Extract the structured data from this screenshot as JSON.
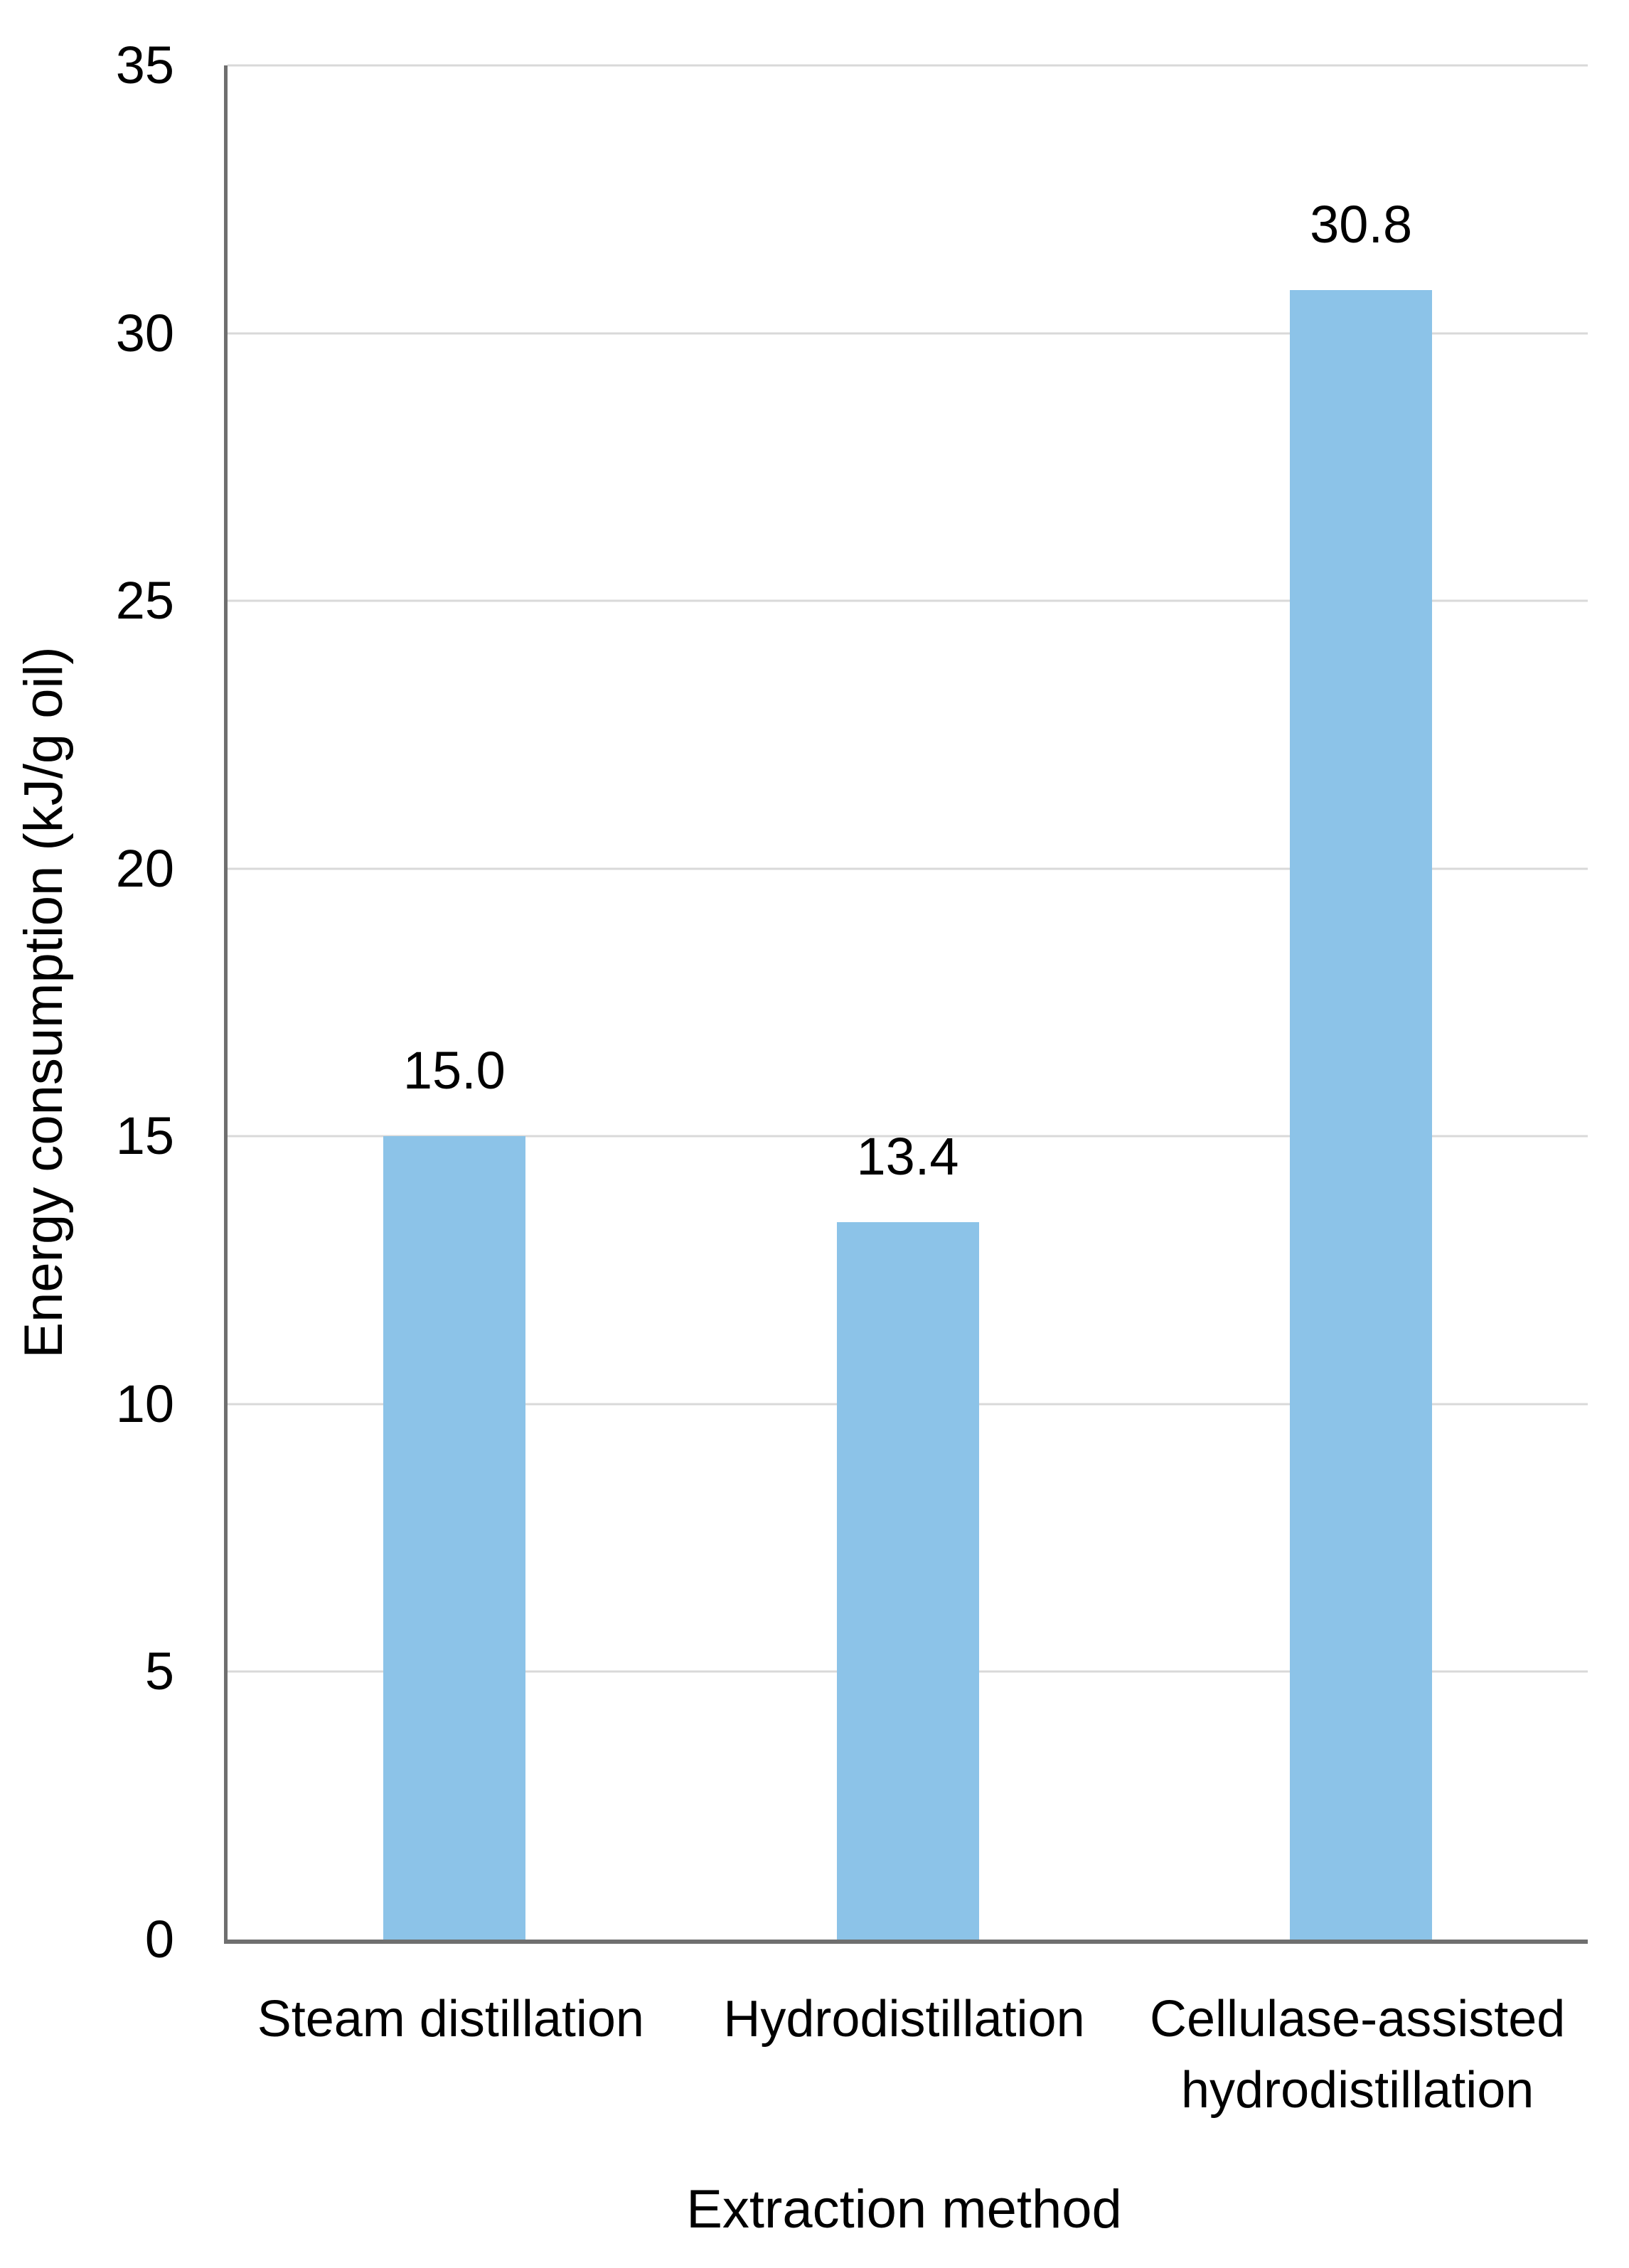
{
  "chart_data": {
    "type": "bar",
    "title": "",
    "categories": [
      "Steam distillation",
      "Hydrodistillation",
      "Cellulase-assisted hydrodistillation"
    ],
    "values": [
      15.0,
      13.4,
      30.8
    ],
    "data_labels": [
      "15.0",
      "13.4",
      "30.8"
    ],
    "xlabel": "Extraction method",
    "ylabel": "Energy consumption (kJ/g oil)",
    "ylim": [
      0,
      35
    ],
    "yticks": [
      0,
      5,
      10,
      15,
      20,
      25,
      30,
      35
    ],
    "grid": true,
    "legend": false,
    "bar_color": "#8cc3e8",
    "gridline_color": "#d9d9d9",
    "axis_line_color": "#6f6f6f",
    "text_color": "#000000"
  }
}
